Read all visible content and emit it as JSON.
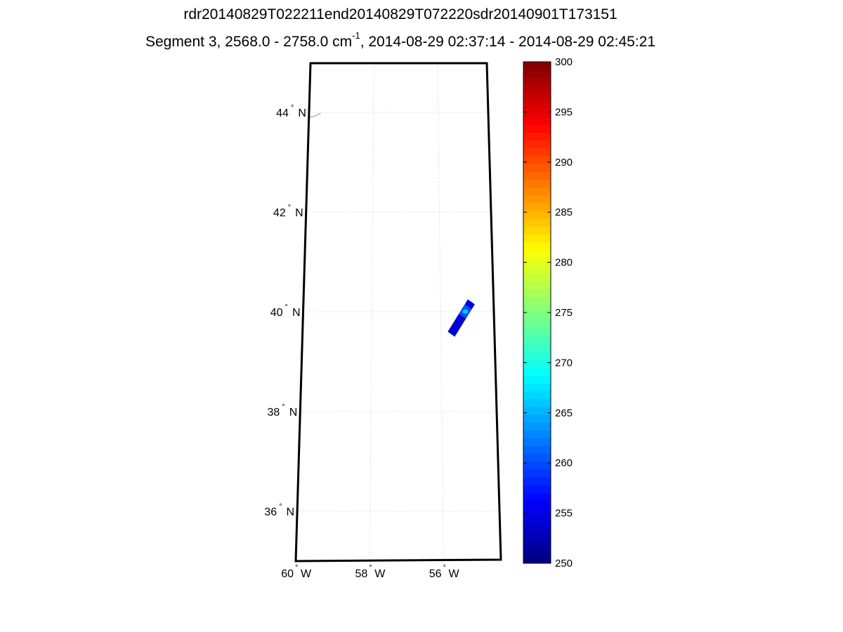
{
  "title": {
    "line1": "rdr20140829T022211end20140829T072220sdr20140901T173151",
    "line2_prefix": "Segment 3, 2568.0 - 2758.0 cm",
    "line2_sup": "-1",
    "line2_suffix": ", 2014-08-29 02:37:14 - 2014-08-29 02:45:21"
  },
  "map": {
    "lat_ticks": [
      {
        "value": 44,
        "label": "44",
        "hemi": "N"
      },
      {
        "value": 42,
        "label": "42",
        "hemi": "N"
      },
      {
        "value": 40,
        "label": "40",
        "hemi": "N"
      },
      {
        "value": 38,
        "label": "38",
        "hemi": "N"
      },
      {
        "value": 36,
        "label": "36",
        "hemi": "N"
      }
    ],
    "lon_ticks": [
      {
        "value": -60,
        "label": "60",
        "hemi": "W"
      },
      {
        "value": -58,
        "label": "58",
        "hemi": "W"
      },
      {
        "value": -56,
        "label": "56",
        "hemi": "W"
      }
    ],
    "degree_symbol": "°",
    "grid": true,
    "data_swath": {
      "corners_lonlat": [
        [
          -55.8,
          39.6
        ],
        [
          -55.2,
          40.25
        ],
        [
          -55.0,
          40.15
        ],
        [
          -55.6,
          39.5
        ]
      ],
      "value_min": 254,
      "value_max": 268
    }
  },
  "colorbar": {
    "min": 250,
    "max": 300,
    "tick_values": [
      300,
      295,
      290,
      285,
      280,
      275,
      270,
      265,
      260,
      255,
      250
    ],
    "colormap": "jet",
    "levels": 64
  }
}
